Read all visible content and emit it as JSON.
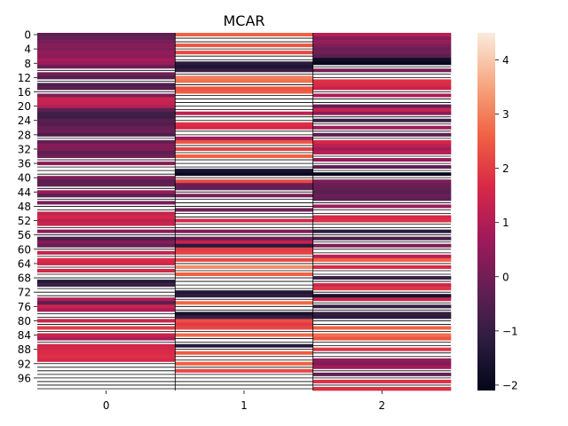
{
  "chart_data": {
    "type": "heatmap",
    "title": "MCAR",
    "xlabel": "",
    "ylabel": "",
    "x_categories": [
      "0",
      "1",
      "2"
    ],
    "y_ticks": [
      "0",
      "4",
      "8",
      "12",
      "16",
      "20",
      "24",
      "28",
      "32",
      "36",
      "40",
      "44",
      "48",
      "52",
      "56",
      "60",
      "64",
      "68",
      "72",
      "76",
      "80",
      "84",
      "88",
      "92",
      "96"
    ],
    "n_rows": 100,
    "colorbar": {
      "min": -2.1,
      "max": 4.5,
      "ticks": [
        "−2",
        "−1",
        "0",
        "1",
        "2",
        "3",
        "4"
      ],
      "tick_values": [
        -2,
        -1,
        0,
        1,
        2,
        3,
        4
      ],
      "colormap": "rocket"
    },
    "missing_value_color": "#ffffff",
    "missing_marker": "NaN",
    "values": [
      [
        -0.3,
        2.6,
        1.1
      ],
      [
        -0.2,
        null,
        0.3
      ],
      [
        0.1,
        null,
        0.6
      ],
      [
        0.3,
        2.4,
        0.2
      ],
      [
        0.2,
        null,
        -0.1
      ],
      [
        0.5,
        2.2,
        0.0
      ],
      [
        0.4,
        null,
        -0.4
      ],
      [
        0.8,
        null,
        -1.8
      ],
      [
        0.6,
        -1.2,
        -2.0
      ],
      [
        -0.1,
        -1.5,
        null
      ],
      [
        null,
        -0.9,
        0.1
      ],
      [
        0.0,
        null,
        null
      ],
      [
        -0.5,
        3.0,
        null
      ],
      [
        null,
        2.8,
        1.8
      ],
      [
        -0.6,
        null,
        1.7
      ],
      [
        -0.4,
        2.4,
        1.4
      ],
      [
        null,
        2.5,
        null
      ],
      [
        0.2,
        null,
        0.9
      ],
      [
        1.4,
        null,
        null
      ],
      [
        1.3,
        null,
        null
      ],
      [
        1.1,
        null,
        -0.2
      ],
      [
        -0.3,
        null,
        1.4
      ],
      [
        -0.8,
        1.2,
        0.4
      ],
      [
        -0.9,
        null,
        null
      ],
      [
        -0.4,
        null,
        -0.9
      ],
      [
        -0.5,
        1.8,
        null
      ],
      [
        -0.2,
        1.6,
        0.7
      ],
      [
        -0.1,
        null,
        null
      ],
      [
        -0.6,
        null,
        -0.3
      ],
      [
        null,
        0.8,
        null
      ],
      [
        -0.2,
        2.4,
        1.6
      ],
      [
        0.3,
        null,
        1.2
      ],
      [
        0.2,
        2.1,
        0.8
      ],
      [
        -0.3,
        null,
        1.1
      ],
      [
        0.0,
        2.6,
        null
      ],
      [
        null,
        null,
        0.6
      ],
      [
        0.4,
        null,
        null
      ],
      [
        null,
        null,
        -0.3
      ],
      [
        null,
        -1.6,
        null
      ],
      [
        null,
        -1.9,
        -2.0
      ],
      [
        0.2,
        null,
        null
      ],
      [
        -0.4,
        2.2,
        0.2
      ],
      [
        -0.3,
        -0.1,
        -0.1
      ],
      [
        null,
        -0.2,
        -0.2
      ],
      [
        0.6,
        null,
        -0.4
      ],
      [
        -0.4,
        0.1,
        -0.1
      ],
      [
        null,
        null,
        -0.3
      ],
      [
        0.1,
        null,
        null
      ],
      [
        null,
        null,
        0.6
      ],
      [
        null,
        0.0,
        null
      ],
      [
        1.3,
        null,
        null
      ],
      [
        1.6,
        null,
        1.6
      ],
      [
        1.2,
        1.6,
        1.8
      ],
      [
        1.4,
        null,
        null
      ],
      [
        null,
        null,
        null
      ],
      [
        0.4,
        0.2,
        -1.2
      ],
      [
        null,
        null,
        null
      ],
      [
        -0.6,
        -0.1,
        -0.6
      ],
      [
        0.3,
        1.3,
        null
      ],
      [
        -0.2,
        -1.3,
        0.2
      ],
      [
        null,
        2.0,
        null
      ],
      [
        1.3,
        2.1,
        null
      ],
      [
        null,
        null,
        1.2
      ],
      [
        1.7,
        2.2,
        2.6
      ],
      [
        1.5,
        null,
        null
      ],
      [
        null,
        3.2,
        1.7
      ],
      [
        1.6,
        null,
        null
      ],
      [
        null,
        2.6,
        null
      ],
      [
        null,
        null,
        -0.9
      ],
      [
        -1.3,
        null,
        null
      ],
      [
        -0.9,
        null,
        1.5
      ],
      [
        null,
        null,
        1.9
      ],
      [
        null,
        -1.4,
        null
      ],
      [
        null,
        -1.1,
        -1.6
      ],
      [
        1.0,
        null,
        1.4
      ],
      [
        -0.3,
        2.7,
        null
      ],
      [
        1.4,
        null,
        -1.0
      ],
      [
        0.9,
        null,
        null
      ],
      [
        null,
        -1.6,
        -1.0
      ],
      [
        null,
        -0.9,
        -1.2
      ],
      [
        1.4,
        2.3,
        null
      ],
      [
        null,
        2.0,
        null
      ],
      [
        2.0,
        2.2,
        2.6
      ],
      [
        null,
        null,
        null
      ],
      [
        1.4,
        2.7,
        2.8
      ],
      [
        0.9,
        null,
        2.4
      ],
      [
        null,
        null,
        null
      ],
      [
        1.5,
        -1.3,
        null
      ],
      [
        1.6,
        null,
        1.9
      ],
      [
        1.7,
        2.5,
        null
      ],
      [
        1.8,
        null,
        null
      ],
      [
        1.6,
        null,
        0.5
      ],
      [
        null,
        2.6,
        0.2
      ],
      [
        null,
        null,
        0.8
      ],
      [
        null,
        2.2,
        null
      ],
      [
        null,
        null,
        -0.2
      ],
      [
        null,
        null,
        null
      ],
      [
        null,
        null,
        1.8
      ],
      [
        null,
        null,
        null
      ],
      [
        null,
        null,
        1.8
      ]
    ]
  }
}
